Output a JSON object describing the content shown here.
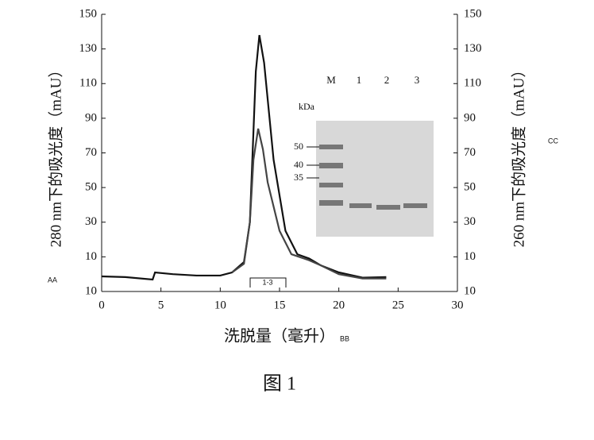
{
  "chart_data": {
    "type": "line",
    "x_label": "洗脱量（毫升）",
    "y_label": "280 nm下的吸光度（mAU）",
    "y2_label": "260 nm下的吸光度（mAU）",
    "caption": "图 1",
    "annotations": {
      "left": "AA",
      "bottom": "BB",
      "right": "CC",
      "fraction": "1-3"
    },
    "inset": {
      "lanes": [
        "M",
        "1",
        "2",
        "3"
      ],
      "unit": "kDa",
      "markers": [
        "50",
        "40",
        "35"
      ]
    },
    "xlim": [
      0,
      30
    ],
    "xticks": [
      0,
      5,
      10,
      15,
      20,
      25,
      30
    ],
    "ylim": [
      -10,
      150
    ],
    "yticks": [
      {
        "value": -10,
        "label": "10"
      },
      10,
      30,
      50,
      70,
      90,
      110,
      130,
      150
    ],
    "y2lim": [
      -10,
      150
    ],
    "y2ticks": [
      {
        "value": -10,
        "label": "10"
      },
      10,
      30,
      50,
      70,
      90,
      110,
      130,
      150
    ],
    "series": [
      {
        "color": "#111111",
        "x": [
          0,
          2,
          4.3,
          4.5,
          6,
          8,
          10,
          11,
          12,
          12.5,
          13,
          13.3,
          13.7,
          14.5,
          15.5,
          16.5,
          17.5,
          18.5,
          20,
          22,
          24
        ],
        "values": [
          -1.3,
          -1.7,
          -3.1,
          1,
          0,
          -0.8,
          -0.8,
          1,
          7,
          30,
          117,
          138,
          122,
          66,
          25,
          11.5,
          9,
          5,
          1,
          -2,
          -1.7
        ]
      },
      {
        "color": "#444444",
        "axis": "y2",
        "x": [
          11,
          12,
          12.5,
          12.8,
          13.2,
          13.6,
          14,
          15,
          16,
          17.5,
          18.5,
          20,
          22,
          24
        ],
        "values": [
          1,
          6,
          30,
          66,
          84,
          72,
          53,
          25,
          11.5,
          8,
          5,
          0,
          -2.5,
          -2.5
        ]
      }
    ]
  }
}
